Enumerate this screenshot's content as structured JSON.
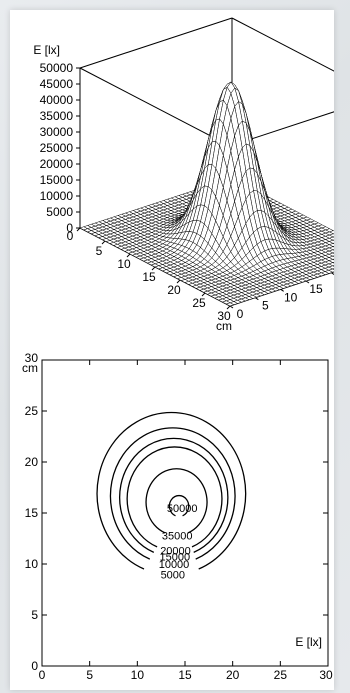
{
  "chart_data": [
    {
      "type": "surface3d",
      "zlabel": "E [lx]",
      "z_ticks": [
        0,
        5000,
        10000,
        15000,
        20000,
        25000,
        30000,
        35000,
        40000,
        45000,
        50000
      ],
      "x_ticks": [
        0,
        5,
        10,
        15,
        20,
        25,
        30
      ],
      "xlabel": "cm",
      "y_ticks": [
        0,
        5,
        10,
        15,
        20,
        25
      ],
      "ylabel": "cm",
      "y_end_label": "30",
      "xlim": [
        0,
        30
      ],
      "ylim": [
        0,
        30
      ],
      "zlim": [
        0,
        50000
      ],
      "peak": {
        "x": 15,
        "y": 15,
        "value": 50000
      },
      "grid": false
    },
    {
      "type": "contour",
      "levels": [
        5000,
        10000,
        15000,
        20000,
        35000,
        50000
      ],
      "level_labels": [
        "5000",
        "10000",
        "15000",
        "20000",
        "35000",
        "50000"
      ],
      "x_ticks": [
        "0",
        "5",
        "10",
        "15",
        "20",
        "25",
        "30"
      ],
      "y_ticks": [
        "0",
        "5",
        "10",
        "15",
        "20",
        "25",
        "30"
      ],
      "x_unit": "cm",
      "y_unit": "cm",
      "annotation": "E [lx]",
      "xlim": [
        0,
        30
      ],
      "ylim": [
        0,
        30
      ],
      "center": {
        "x": 14.5,
        "y": 15.5
      },
      "grid": false
    }
  ]
}
